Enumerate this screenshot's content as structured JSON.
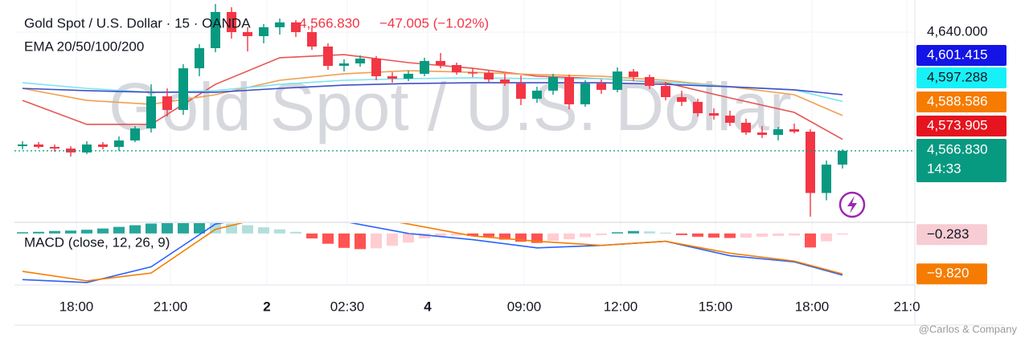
{
  "chart_data": [
    {
      "type": "candlestick",
      "title": "Gold Spot / U.S. Dollar · 15 · OANDA",
      "last_price": "4,566.830",
      "change": "−47.005 (−1.02%)",
      "indicator": "EMA 20/50/100/200",
      "watermark": "Gold Spot / U.S. Dollar",
      "up_color": "#089981",
      "down_color": "#f23645",
      "open": [
        4569.7,
        4570.7,
        4569.2,
        4568.2,
        4565.8,
        4570.7,
        4569.2,
        4573.2,
        4580.6,
        4600.4,
        4592.0,
        4617.7,
        4630.1,
        4652.4,
        4640.0,
        4637.5,
        4643.0,
        4646.0,
        4640.0,
        4631.1,
        4619.2,
        4620.7,
        4623.7,
        4612.8,
        4611.3,
        4614.3,
        4622.2,
        4619.7,
        4615.2,
        4614.8,
        4610.8,
        4608.3,
        4598.9,
        4603.9,
        4612.3,
        4595.5,
        4608.3,
        4604.4,
        4615.7,
        4612.3,
        4606.8,
        4599.9,
        4597.0,
        4590.0,
        4588.5,
        4584.1,
        4578.1,
        4576.6,
        4580.1,
        4578.6,
        4540.8,
        4558.3
      ],
      "high": [
        4572.7,
        4572.2,
        4570.7,
        4569.7,
        4572.7,
        4572.2,
        4575.7,
        4582.1,
        4607.8,
        4605.3,
        4620.2,
        4632.6,
        4657.3,
        4655.4,
        4643.0,
        4645.0,
        4648.4,
        4647.4,
        4643.0,
        4633.1,
        4623.2,
        4625.7,
        4625.2,
        4615.2,
        4616.2,
        4624.2,
        4627.1,
        4621.2,
        4617.7,
        4616.2,
        4614.3,
        4613.3,
        4606.3,
        4614.3,
        4613.8,
        4610.3,
        4610.8,
        4618.2,
        4617.2,
        4613.8,
        4609.3,
        4603.9,
        4598.9,
        4593.0,
        4591.5,
        4586.6,
        4582.1,
        4581.6,
        4583.6,
        4580.1,
        4560.8,
        4567.7
      ],
      "low": [
        4567.7,
        4568.2,
        4566.2,
        4563.3,
        4564.8,
        4567.7,
        4566.7,
        4572.2,
        4578.1,
        4588.0,
        4589.0,
        4612.8,
        4627.6,
        4636.0,
        4628.1,
        4633.1,
        4638.5,
        4637.0,
        4629.1,
        4616.7,
        4615.7,
        4618.7,
        4610.3,
        4608.8,
        4609.8,
        4612.8,
        4617.7,
        4613.8,
        4612.3,
        4609.3,
        4606.8,
        4595.0,
        4596.4,
        4601.4,
        4592.5,
        4594.0,
        4601.9,
        4602.9,
        4609.8,
        4604.9,
        4597.9,
        4594.5,
        4588.0,
        4586.1,
        4582.1,
        4576.6,
        4574.7,
        4573.2,
        4577.6,
        4526.2,
        4536.3,
        4555.9
      ],
      "close": [
        4570.7,
        4569.2,
        4568.2,
        4565.8,
        4570.7,
        4569.2,
        4573.2,
        4580.6,
        4600.4,
        4592.0,
        4617.7,
        4630.1,
        4652.4,
        4640.0,
        4637.5,
        4643.0,
        4646.0,
        4640.0,
        4631.1,
        4619.2,
        4620.7,
        4623.7,
        4612.8,
        4611.3,
        4614.3,
        4622.2,
        4619.7,
        4615.2,
        4614.8,
        4610.8,
        4608.3,
        4598.9,
        4603.9,
        4612.3,
        4595.5,
        4608.3,
        4604.4,
        4615.7,
        4612.3,
        4606.8,
        4599.9,
        4597.0,
        4590.0,
        4588.5,
        4584.1,
        4578.1,
        4576.6,
        4580.1,
        4578.6,
        4540.8,
        4558.3,
        4566.83
      ],
      "series": [
        {
          "color": "#e85454",
          "x": [
            0,
            4,
            8,
            12,
            16,
            20,
            24,
            28,
            32,
            36,
            40,
            44,
            48,
            51
          ],
          "values": [
            4597.9,
            4583.1,
            4583.1,
            4607.8,
            4624.2,
            4626.1,
            4621.2,
            4617.7,
            4612.8,
            4611.3,
            4608.8,
            4599.4,
            4590.5,
            4573.905
          ]
        },
        {
          "color": "#f0a050",
          "x": [
            0,
            4,
            8,
            12,
            16,
            20,
            24,
            28,
            32,
            36,
            40,
            44,
            48,
            51
          ],
          "values": [
            4605.3,
            4597.9,
            4595.5,
            4601.4,
            4610.3,
            4614.3,
            4616.2,
            4615.2,
            4613.8,
            4612.8,
            4610.3,
            4606.3,
            4601.4,
            4588.586
          ]
        },
        {
          "color": "#7de3f0",
          "x": [
            0,
            4,
            8,
            12,
            16,
            20,
            24,
            28,
            32,
            36,
            40,
            44,
            48,
            51
          ],
          "values": [
            4608.8,
            4605.3,
            4602.9,
            4603.9,
            4607.8,
            4610.3,
            4611.3,
            4611.8,
            4611.3,
            4611.3,
            4609.3,
            4606.3,
            4604.4,
            4597.288
          ]
        },
        {
          "color": "#3f4fc8",
          "x": [
            0,
            4,
            8,
            12,
            16,
            20,
            24,
            28,
            32,
            36,
            40,
            44,
            48,
            51
          ],
          "values": [
            4605.3,
            4603.9,
            4602.9,
            4602.9,
            4605.3,
            4607.3,
            4608.3,
            4608.8,
            4608.8,
            4608.8,
            4607.8,
            4606.3,
            4604.4,
            4601.415
          ]
        }
      ],
      "xlim": [
        -0.5,
        55.5
      ],
      "ylim": [
        4522.7,
        4659.8
      ],
      "xticks": [
        {
          "value": 3.35,
          "label": "18:00"
        },
        {
          "value": 9.2,
          "label": "21:00"
        },
        {
          "value": 15.2,
          "label": "2",
          "bold": true
        },
        {
          "value": 20.2,
          "label": "02:30"
        },
        {
          "value": 25.2,
          "label": "4",
          "bold": true
        },
        {
          "value": 31.2,
          "label": "09:00"
        },
        {
          "value": 37.2,
          "label": "12:00"
        },
        {
          "value": 43.1,
          "label": "15:00"
        },
        {
          "value": 49.1,
          "label": "18:00"
        },
        {
          "value": 55.0,
          "label": "21:0"
        }
      ],
      "yticks": [
        {
          "value": 4640,
          "label": "4,640.000"
        }
      ],
      "price_labels": [
        {
          "value": 4601.415,
          "label": "4,601.415",
          "color": "#1414e6",
          "text_color": "#ffffff"
        },
        {
          "value": 4597.288,
          "label": "4,597.288",
          "color": "#18f0f8",
          "text_color": "#131722"
        },
        {
          "value": 4588.586,
          "label": "4,588.586",
          "color": "#f57c00",
          "text_color": "#ffffff"
        },
        {
          "value": 4573.905,
          "label": "4,573.905",
          "color": "#e5141e",
          "text_color": "#ffffff"
        }
      ],
      "current_price": {
        "value": 4566.83,
        "label": "4,566.830",
        "countdown": "14:33",
        "color": "#089981"
      }
    },
    {
      "type": "macd",
      "title": "MACD (close, 12, 26, 9)",
      "histogram": [
        0.3,
        0.4,
        0.6,
        0.7,
        0.9,
        1.2,
        1.6,
        2.0,
        2.4,
        2.6,
        2.8,
        2.9,
        2.8,
        2.4,
        2.0,
        1.5,
        1.0,
        0.4,
        -1.2,
        -2.5,
        -3.5,
        -3.8,
        -3.6,
        -3.0,
        -2.2,
        -1.2,
        -0.6,
        -0.5,
        -0.6,
        -0.8,
        -1.5,
        -2.0,
        -2.3,
        -1.8,
        -1.4,
        -0.9,
        -0.4,
        0.3,
        0.6,
        0.5,
        0.2,
        -0.4,
        -0.8,
        -1.0,
        -1.1,
        -1.0,
        -0.8,
        -0.6,
        -0.5,
        -3.4,
        -1.9,
        -0.283
      ],
      "hist_colors": {
        "pos_rising": "#26a69a",
        "pos_falling": "#b2dfdb",
        "neg_falling": "#ff5252",
        "neg_rising": "#ffcdd2"
      },
      "series": [
        {
          "color": "#2962ff",
          "x": [
            0,
            4,
            8,
            12,
            16,
            20,
            24,
            28,
            32,
            36,
            40,
            44,
            48,
            51
          ],
          "values": [
            -11.2,
            -11.9,
            -8.1,
            2.3,
            4.8,
            2.9,
            0,
            -1.5,
            -3.5,
            -2.9,
            -1.9,
            -5.4,
            -6.9,
            -10.1
          ]
        },
        {
          "color": "#f57c00",
          "x": [
            0,
            4,
            8,
            12,
            16,
            20,
            24,
            28,
            32,
            36,
            40,
            44,
            48,
            51
          ],
          "values": [
            -9.2,
            -11.5,
            -9.6,
            1.0,
            4.8,
            4.8,
            2.3,
            -0.6,
            -1.9,
            -2.9,
            -1.9,
            -4.8,
            -6.7,
            -9.82
          ]
        }
      ],
      "ylim": [
        -12.5,
        2.5
      ],
      "price_labels": [
        {
          "value": -0.283,
          "label": "−0.283",
          "color": "#f8ccd3",
          "text_color": "#131722"
        },
        {
          "value": -9.82,
          "label": "−9.820",
          "color": "#f57c00",
          "text_color": "#ffffff"
        }
      ]
    }
  ],
  "footer": "@Carlos & Company"
}
